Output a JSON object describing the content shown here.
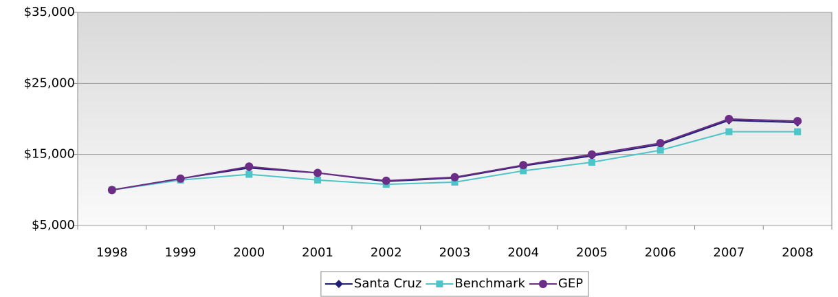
{
  "chart_data": {
    "type": "line",
    "categories": [
      "1998",
      "1999",
      "2000",
      "2001",
      "2002",
      "2003",
      "2004",
      "2005",
      "2006",
      "2007",
      "2008"
    ],
    "series": [
      {
        "name": "Santa Cruz",
        "color": "#1f1f78",
        "marker": "diamond",
        "values": [
          10000,
          11600,
          13100,
          12400,
          11200,
          11700,
          13400,
          14800,
          16400,
          19800,
          19500
        ]
      },
      {
        "name": "Benchmark",
        "color": "#4cc4c8",
        "marker": "square",
        "values": [
          10000,
          11400,
          12200,
          11400,
          10800,
          11100,
          12700,
          13900,
          15600,
          18200,
          18200
        ]
      },
      {
        "name": "GEP",
        "color": "#6b2d85",
        "marker": "circle",
        "values": [
          10000,
          11600,
          13300,
          12400,
          11300,
          11800,
          13500,
          15000,
          16600,
          20000,
          19700
        ]
      }
    ],
    "ylim": [
      5000,
      35000
    ],
    "yticks": [
      {
        "value": 5000,
        "label": "$5,000"
      },
      {
        "value": 15000,
        "label": "$15,000"
      },
      {
        "value": 25000,
        "label": "$25,000"
      },
      {
        "value": 35000,
        "label": "$35,000"
      }
    ],
    "grid": true,
    "legend": "bottom"
  }
}
